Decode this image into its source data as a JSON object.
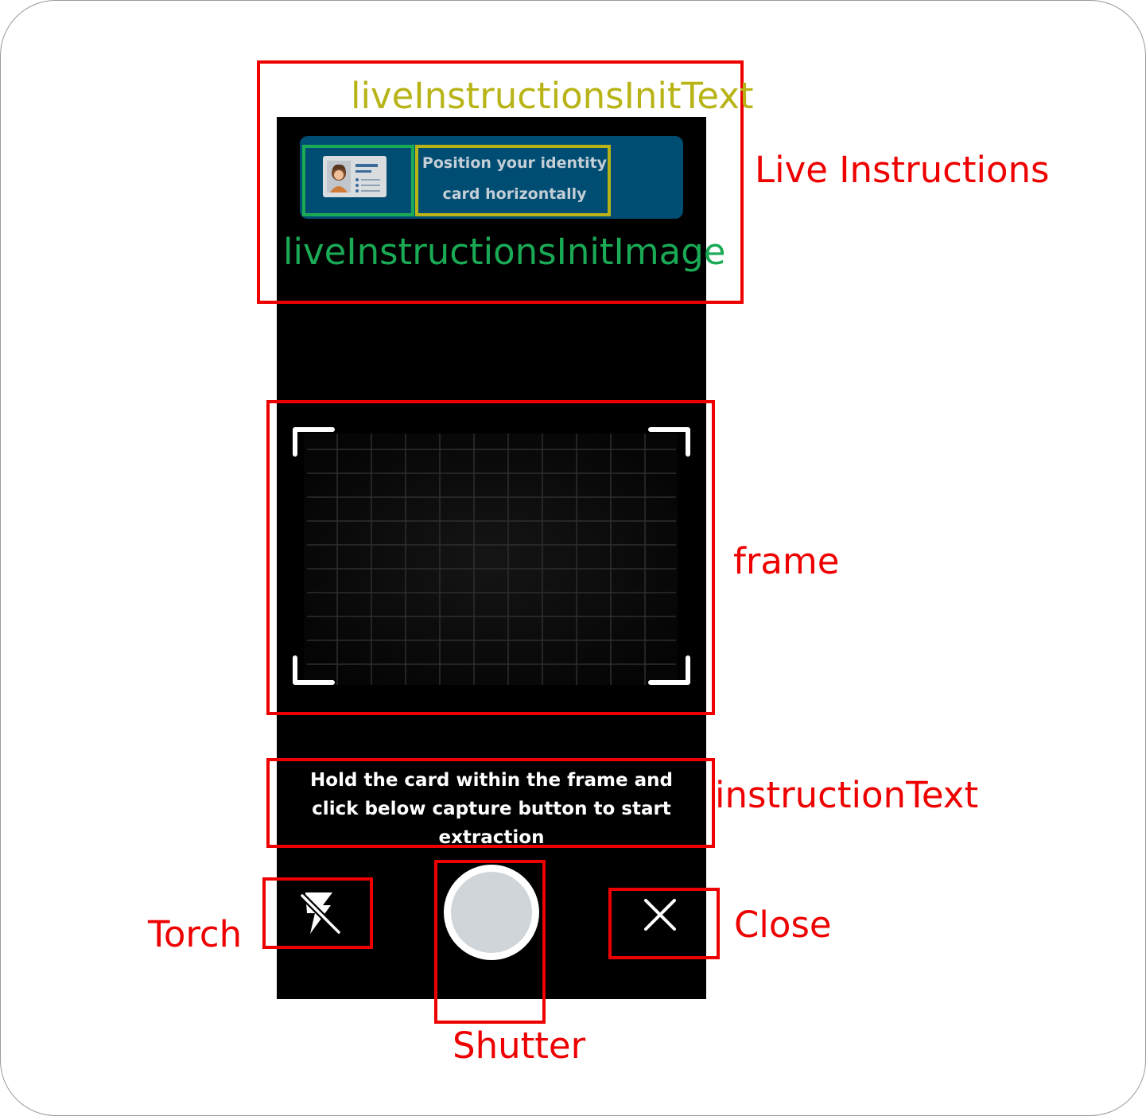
{
  "live_instructions": {
    "text_line1": "Position your identity",
    "text_line2": "card horizontally",
    "image_icon": "id-card-icon"
  },
  "camera": {
    "instruction_line1": "Hold the card within the frame and",
    "instruction_line2": "click below capture button to start",
    "instruction_line3": "extraction",
    "torch_icon": "flash-off-icon",
    "shutter_icon": "shutter-icon",
    "close_icon": "close-icon"
  },
  "annotations": {
    "live_instructions_init_text": "liveInstructionsInitText",
    "live_instructions": "Live Instructions",
    "live_instructions_init_image": "liveInstructionsInitImage",
    "frame": "frame",
    "instruction_text": "instructionText",
    "torch": "Torch",
    "close": "Close",
    "shutter": "Shutter"
  },
  "colors": {
    "banner": "#004d73",
    "annotation_red": "#ee0000",
    "annotation_green": "#1aaa55",
    "annotation_yellow": "#b8b418"
  }
}
